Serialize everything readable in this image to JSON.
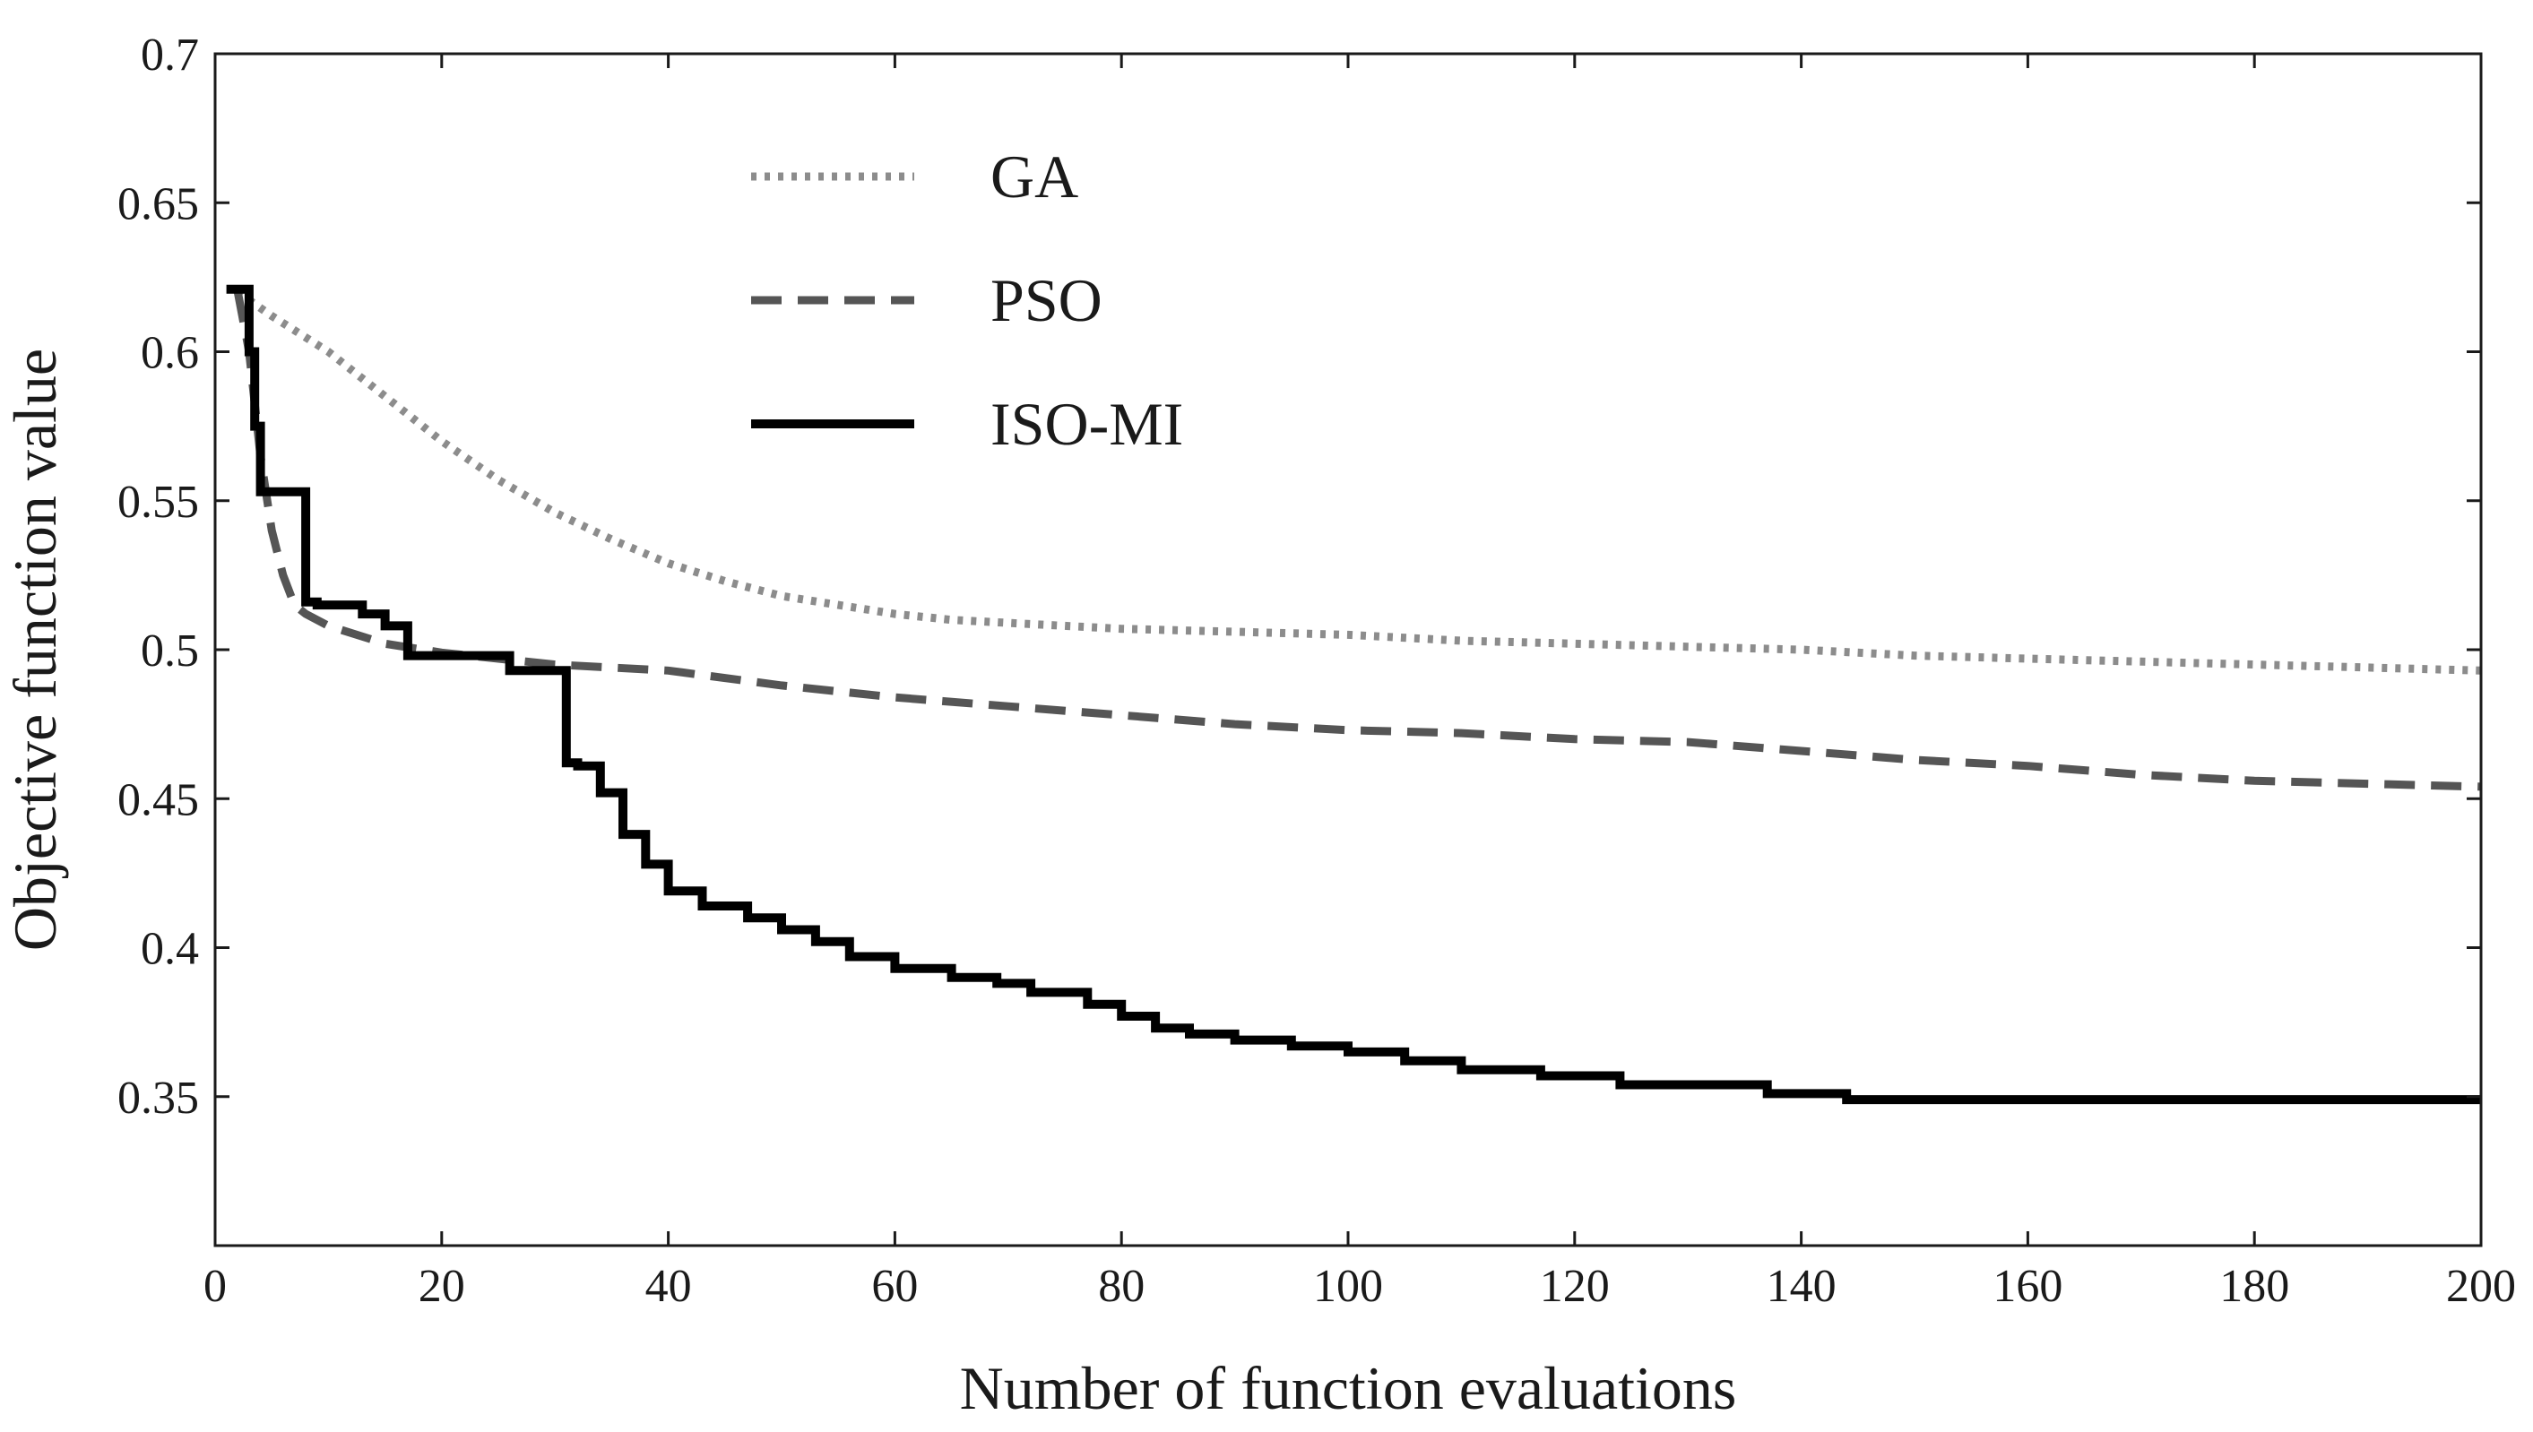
{
  "chart_data": {
    "type": "line",
    "title": "",
    "xlabel": "Number of function evaluations",
    "ylabel": "Objective function value",
    "xlim": [
      0,
      200
    ],
    "ylim": [
      0.3,
      0.7
    ],
    "xticks": [
      0,
      20,
      40,
      60,
      80,
      100,
      120,
      140,
      160,
      180,
      200
    ],
    "xtick_labels": [
      "0",
      "20",
      "40",
      "60",
      "80",
      "100",
      "120",
      "140",
      "160",
      "180",
      "200"
    ],
    "yticks": [
      0.35,
      0.4,
      0.45,
      0.5,
      0.55,
      0.6,
      0.65,
      0.7
    ],
    "ytick_labels": [
      "0.35",
      "0.4",
      "0.45",
      "0.5",
      "0.55",
      "0.6",
      "0.65",
      "0.7"
    ],
    "grid": false,
    "legend_position": "top-center",
    "series": [
      {
        "name": "GA",
        "style": "dotted",
        "color": "#8c8c8c",
        "x": [
          2,
          5,
          10,
          15,
          20,
          25,
          30,
          35,
          40,
          45,
          50,
          55,
          60,
          65,
          70,
          80,
          90,
          100,
          110,
          120,
          130,
          140,
          150,
          160,
          170,
          180,
          190,
          200
        ],
        "y": [
          0.62,
          0.612,
          0.6,
          0.585,
          0.57,
          0.557,
          0.546,
          0.537,
          0.529,
          0.523,
          0.518,
          0.515,
          0.512,
          0.51,
          0.509,
          0.507,
          0.506,
          0.505,
          0.503,
          0.502,
          0.501,
          0.5,
          0.498,
          0.497,
          0.496,
          0.495,
          0.494,
          0.493
        ]
      },
      {
        "name": "PSO",
        "style": "dashed",
        "color": "#555555",
        "x": [
          2,
          3,
          4,
          5,
          6,
          7,
          8,
          10,
          15,
          20,
          25,
          30,
          40,
          50,
          60,
          70,
          80,
          90,
          100,
          110,
          120,
          130,
          140,
          150,
          160,
          170,
          180,
          190,
          200
        ],
        "y": [
          0.62,
          0.6,
          0.565,
          0.54,
          0.525,
          0.515,
          0.512,
          0.508,
          0.502,
          0.499,
          0.497,
          0.495,
          0.493,
          0.488,
          0.484,
          0.481,
          0.478,
          0.475,
          0.473,
          0.472,
          0.47,
          0.469,
          0.466,
          0.463,
          0.461,
          0.458,
          0.456,
          0.455,
          0.454
        ]
      },
      {
        "name": "ISO-MI",
        "style": "solid",
        "color": "#000000",
        "step": true,
        "x": [
          1,
          3,
          3.5,
          4,
          8,
          9,
          13,
          15,
          17,
          26,
          31,
          32,
          34,
          36,
          38,
          40,
          43,
          47,
          50,
          53,
          56,
          60,
          65,
          69,
          72,
          77,
          80,
          83,
          86,
          90,
          95,
          100,
          105,
          110,
          117,
          124,
          137,
          144,
          200
        ],
        "y": [
          0.621,
          0.6,
          0.575,
          0.553,
          0.516,
          0.515,
          0.512,
          0.508,
          0.498,
          0.493,
          0.462,
          0.461,
          0.452,
          0.438,
          0.428,
          0.419,
          0.414,
          0.41,
          0.406,
          0.402,
          0.397,
          0.393,
          0.39,
          0.388,
          0.385,
          0.381,
          0.377,
          0.373,
          0.371,
          0.369,
          0.367,
          0.365,
          0.362,
          0.359,
          0.357,
          0.354,
          0.351,
          0.349,
          0.349
        ]
      }
    ]
  }
}
